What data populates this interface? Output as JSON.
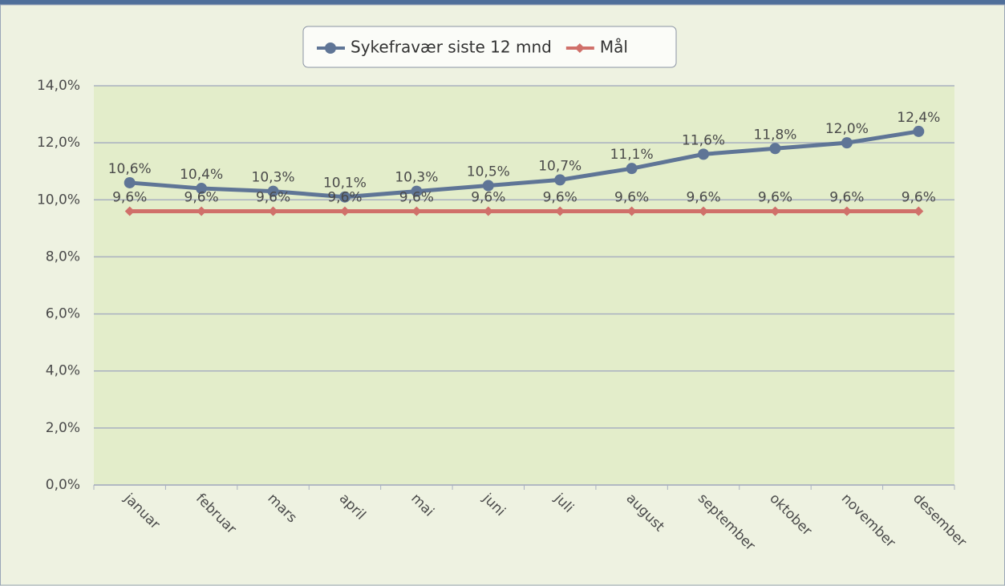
{
  "chart_data": {
    "type": "line",
    "categories": [
      "januar",
      "februar",
      "mars",
      "april",
      "mai",
      "juni",
      "juli",
      "august",
      "september",
      "oktober",
      "november",
      "desember"
    ],
    "series": [
      {
        "name": "Sykefravær siste 12 mnd",
        "color": "#5f7596",
        "marker": "circle",
        "values": [
          10.6,
          10.4,
          10.3,
          10.1,
          10.3,
          10.5,
          10.7,
          11.1,
          11.6,
          11.8,
          12.0,
          12.4
        ],
        "value_labels": [
          "10,6%",
          "10,4%",
          "10,3%",
          "10,1%",
          "10,3%",
          "10,5%",
          "10,7%",
          "11,1%",
          "11,6%",
          "11,8%",
          "12,0%",
          "12,4%"
        ]
      },
      {
        "name": "Mål",
        "color": "#d0706a",
        "marker": "diamond",
        "values": [
          9.6,
          9.6,
          9.6,
          9.6,
          9.6,
          9.6,
          9.6,
          9.6,
          9.6,
          9.6,
          9.6,
          9.6
        ],
        "value_labels": [
          "9,6%",
          "9,6%",
          "9,6%",
          "9,6%",
          "9,6%",
          "9,6%",
          "9,6%",
          "9,6%",
          "9,6%",
          "9,6%",
          "9,6%",
          "9,6%"
        ]
      }
    ],
    "ylim": [
      0,
      14
    ],
    "yticks": [
      {
        "value": 0,
        "label": "0,0%"
      },
      {
        "value": 2,
        "label": "2,0%"
      },
      {
        "value": 4,
        "label": "4,0%"
      },
      {
        "value": 6,
        "label": "6,0%"
      },
      {
        "value": 8,
        "label": "8,0%"
      },
      {
        "value": 10,
        "label": "10,0%"
      },
      {
        "value": 12,
        "label": "12,0%"
      },
      {
        "value": 14,
        "label": "14,0%"
      }
    ],
    "grid": true,
    "legend": "top"
  }
}
